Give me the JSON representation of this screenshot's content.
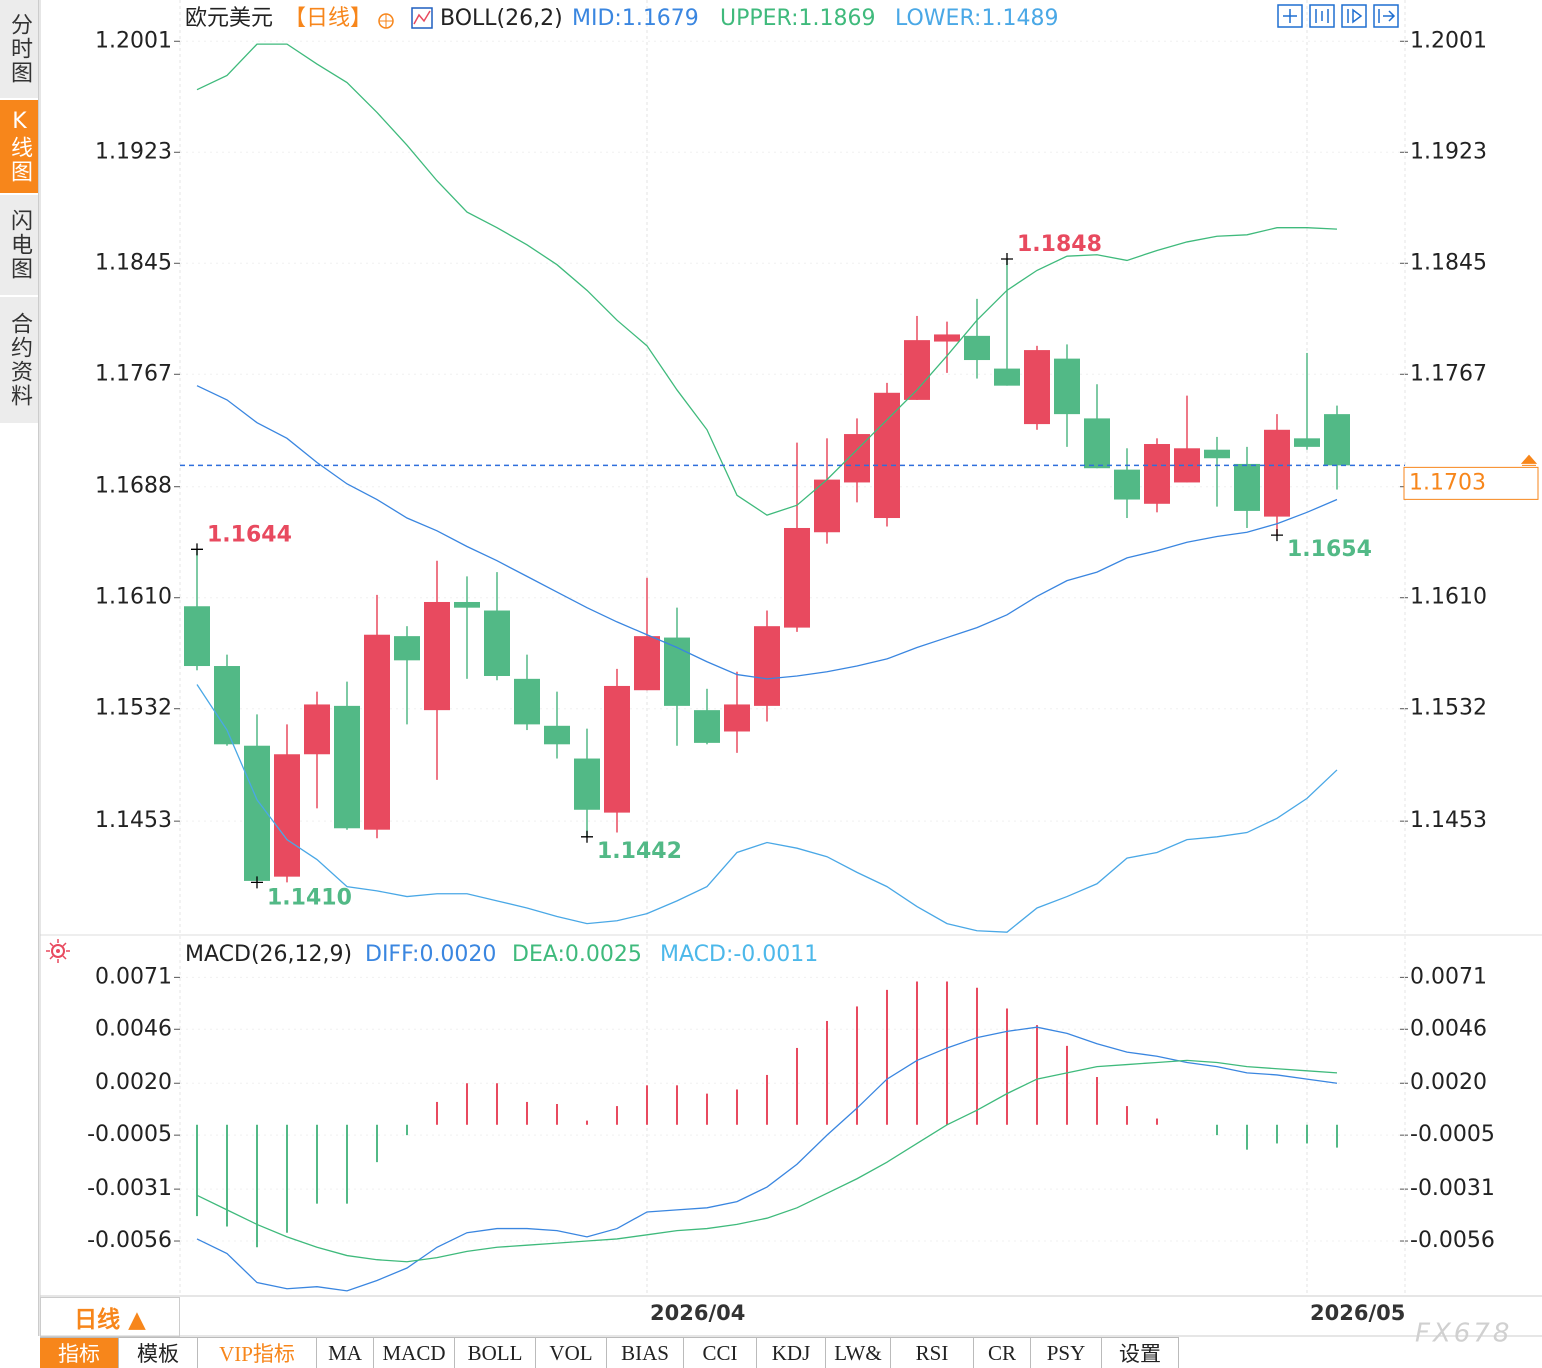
{
  "sidebar": [
    "分时图",
    "K线图",
    "闪电图",
    "合约资料"
  ],
  "chart_data": [
    {
      "type": "candlestick",
      "title": "欧元美元",
      "subtitle": "【日线】",
      "overlay_title": "BOLL(26,2)",
      "categories": [
        null,
        null,
        null,
        null,
        null,
        null,
        null,
        null,
        null,
        null,
        null,
        null,
        null,
        null,
        null,
        "2026/04",
        null,
        null,
        null,
        null,
        null,
        null,
        null,
        null,
        null,
        null,
        null,
        null,
        null,
        null,
        null,
        null,
        null,
        null,
        null,
        null,
        null,
        "2026/05",
        null
      ],
      "open": [
        1.1604,
        1.1562,
        1.1506,
        1.1414,
        1.15,
        1.1534,
        1.1447,
        1.1583,
        1.1531,
        1.1607,
        1.1601,
        1.1553,
        1.152,
        1.1497,
        1.1459,
        1.1545,
        1.1582,
        1.1531,
        1.1516,
        1.1534,
        1.1589,
        1.1656,
        1.1691,
        1.1666,
        1.1749,
        1.179,
        1.1794,
        1.1771,
        1.1732,
        1.1778,
        1.1736,
        1.17,
        1.1676,
        1.1691,
        1.1714,
        1.1704,
        1.1667,
        1.1722,
        1.1739
      ],
      "high": [
        1.1644,
        1.157,
        1.1528,
        1.1521,
        1.1544,
        1.1551,
        1.1612,
        1.159,
        1.1636,
        1.1625,
        1.1628,
        1.157,
        1.1544,
        1.1518,
        1.156,
        1.1624,
        1.1603,
        1.1546,
        1.1558,
        1.1601,
        1.1719,
        1.1722,
        1.1736,
        1.1761,
        1.1808,
        1.1804,
        1.182,
        1.1848,
        1.1787,
        1.1788,
        1.176,
        1.1715,
        1.1722,
        1.1752,
        1.1723,
        1.1716,
        1.1739,
        1.1782,
        1.1745
      ],
      "low": [
        1.1559,
        1.1506,
        1.141,
        1.141,
        1.1462,
        1.1447,
        1.1441,
        1.1521,
        1.1482,
        1.1553,
        1.1552,
        1.1517,
        1.1497,
        1.1442,
        1.1445,
        1.1545,
        1.1506,
        1.1507,
        1.1501,
        1.1523,
        1.1586,
        1.1648,
        1.1677,
        1.166,
        1.1749,
        1.1768,
        1.1764,
        1.1759,
        1.1728,
        1.1716,
        1.1701,
        1.1666,
        1.167,
        1.1691,
        1.1674,
        1.1659,
        1.1654,
        1.1714,
        1.1686
      ],
      "close": [
        1.1562,
        1.1507,
        1.1411,
        1.15,
        1.1535,
        1.1448,
        1.1584,
        1.1566,
        1.1607,
        1.1603,
        1.1555,
        1.1521,
        1.1507,
        1.1461,
        1.1548,
        1.1583,
        1.1534,
        1.1508,
        1.1535,
        1.159,
        1.1659,
        1.1693,
        1.1725,
        1.1754,
        1.1791,
        1.1795,
        1.1777,
        1.1759,
        1.1784,
        1.1739,
        1.1701,
        1.1679,
        1.1718,
        1.1715,
        1.1708,
        1.1671,
        1.1728,
        1.1716,
        1.1703
      ],
      "up_color": "#e84a5f",
      "down_color": "#52b986",
      "series": [
        {
          "name": "MID:1.1679",
          "color": "#3a86e0",
          "values": [
            1.1759,
            1.1749,
            1.1733,
            1.1722,
            1.1705,
            1.169,
            1.1679,
            1.1666,
            1.1657,
            1.1646,
            1.1636,
            1.1625,
            1.1614,
            1.1603,
            1.1593,
            1.1584,
            1.1575,
            1.1565,
            1.1556,
            1.1553,
            1.1555,
            1.1558,
            1.1562,
            1.1567,
            1.1575,
            1.1582,
            1.1589,
            1.1598,
            1.1611,
            1.1622,
            1.1628,
            1.1638,
            1.1643,
            1.1649,
            1.1653,
            1.1656,
            1.1662,
            1.167,
            1.1679
          ]
        },
        {
          "name": "UPPER:1.1869",
          "color": "#3fba7c",
          "values": [
            1.1967,
            1.1977,
            1.1999,
            1.1999,
            1.1985,
            1.1972,
            1.1951,
            1.1928,
            1.1903,
            1.1881,
            1.187,
            1.1858,
            1.1844,
            1.1826,
            1.1805,
            1.1787,
            1.1756,
            1.1728,
            1.1682,
            1.1668,
            1.1675,
            1.1693,
            1.1714,
            1.1735,
            1.1756,
            1.178,
            1.1805,
            1.1826,
            1.184,
            1.185,
            1.1851,
            1.1847,
            1.1854,
            1.186,
            1.1864,
            1.1865,
            1.187,
            1.187,
            1.1869
          ]
        },
        {
          "name": "LOWER:1.1489",
          "color": "#4aa8e6",
          "values": [
            1.1549,
            1.1517,
            1.1468,
            1.144,
            1.1426,
            1.1407,
            1.1404,
            1.14,
            1.1402,
            1.1402,
            1.1397,
            1.1392,
            1.1386,
            1.1381,
            1.1383,
            1.1388,
            1.1397,
            1.1407,
            1.1431,
            1.1438,
            1.1434,
            1.1428,
            1.1417,
            1.1407,
            1.1393,
            1.1381,
            1.1376,
            1.1375,
            1.1392,
            1.14,
            1.1409,
            1.1427,
            1.1431,
            1.144,
            1.1442,
            1.1445,
            1.1455,
            1.1469,
            1.1489
          ]
        }
      ],
      "last_price": 1.1703,
      "annotations": [
        "1.1644",
        "1.1410",
        "1.1442",
        "1.1848",
        "1.1654"
      ],
      "ylim": [
        1.1373,
        1.203
      ],
      "yticks": [
        1.2001,
        1.1923,
        1.1845,
        1.1767,
        1.1688,
        {
          "value": 1.161,
          "label": "1.1610"
        },
        1.1532,
        1.1453
      ],
      "grid": true
    },
    {
      "type": "macd",
      "title": "MACD(26,12,9)",
      "series": [
        {
          "name": "DIFF:0.0020",
          "color": "#3a86e0",
          "values": [
            -0.0055,
            -0.0062,
            -0.0076,
            -0.0079,
            -0.0078,
            -0.008,
            -0.0075,
            -0.0069,
            -0.0059,
            -0.0052,
            -0.005,
            -0.005,
            -0.0051,
            -0.0054,
            -0.005,
            -0.0042,
            -0.0041,
            -0.004,
            -0.0037,
            -0.003,
            -0.0019,
            -0.0005,
            0.0008,
            0.0022,
            0.0031,
            0.0037,
            0.0042,
            0.0045,
            0.0047,
            0.0044,
            0.0039,
            0.0035,
            0.0033,
            0.003,
            0.0028,
            0.0025,
            0.0024,
            0.0022,
            0.002
          ]
        },
        {
          "name": "DEA:0.0025",
          "color": "#3fba7c",
          "values": [
            -0.0034,
            -0.0041,
            -0.0048,
            -0.0054,
            -0.0059,
            -0.0063,
            -0.0065,
            -0.0066,
            -0.0064,
            -0.0061,
            -0.0059,
            -0.0058,
            -0.0057,
            -0.0056,
            -0.0055,
            -0.0053,
            -0.0051,
            -0.005,
            -0.0048,
            -0.0045,
            -0.004,
            -0.0033,
            -0.0026,
            -0.0018,
            -0.0009,
            0,
            0.0007,
            0.0015,
            0.0022,
            0.0025,
            0.0028,
            0.0029,
            0.003,
            0.0031,
            0.003,
            0.0028,
            0.0027,
            0.0026,
            0.0025
          ]
        }
      ],
      "histogram": {
        "name": "MACD:-0.0011",
        "color": "#4cb8ea",
        "up_color": "#e84a5f",
        "down_color": "#52b986",
        "values": [
          -0.0044,
          -0.0049,
          -0.0059,
          -0.0052,
          -0.0038,
          -0.0038,
          -0.0018,
          -0.0005,
          0.0011,
          0.002,
          0.002,
          0.0011,
          0.001,
          0.0002,
          0.0009,
          0.0019,
          0.0019,
          0.0015,
          0.0017,
          0.0024,
          0.0037,
          0.005,
          0.0057,
          0.0065,
          0.0069,
          0.0069,
          0.0066,
          0.0056,
          0.0048,
          0.0038,
          0.0023,
          0.0009,
          0.0003,
          0,
          -0.0005,
          -0.0012,
          -0.0009,
          -0.0009,
          -0.0011
        ]
      },
      "ylim": [
        -0.0082,
        0.0089
      ],
      "yticks": [
        0.0071,
        0.0046,
        {
          "value": 0.002,
          "label": "0.0020"
        },
        -0.0005,
        -0.0031,
        -0.0056
      ],
      "grid": true
    }
  ],
  "period_tab": "日线 ▲",
  "toolbar": [
    "指标",
    "模板",
    "VIP指标",
    "MA",
    "MACD",
    "BOLL",
    "VOL",
    "BIAS",
    "CCI",
    "KDJ",
    "LW&",
    "RSI",
    "CR",
    "PSY",
    "设置"
  ],
  "watermark": "FX678"
}
